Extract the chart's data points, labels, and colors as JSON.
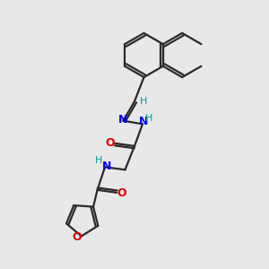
{
  "bg_color": "#e8e8e8",
  "bond_color": "#2a2a2a",
  "N_color": "#0000ee",
  "O_color": "#dd0000",
  "H_color": "#009999",
  "figsize": [
    3.0,
    3.0
  ],
  "dpi": 100,
  "xlim": [
    0,
    10
  ],
  "ylim": [
    0,
    10
  ]
}
